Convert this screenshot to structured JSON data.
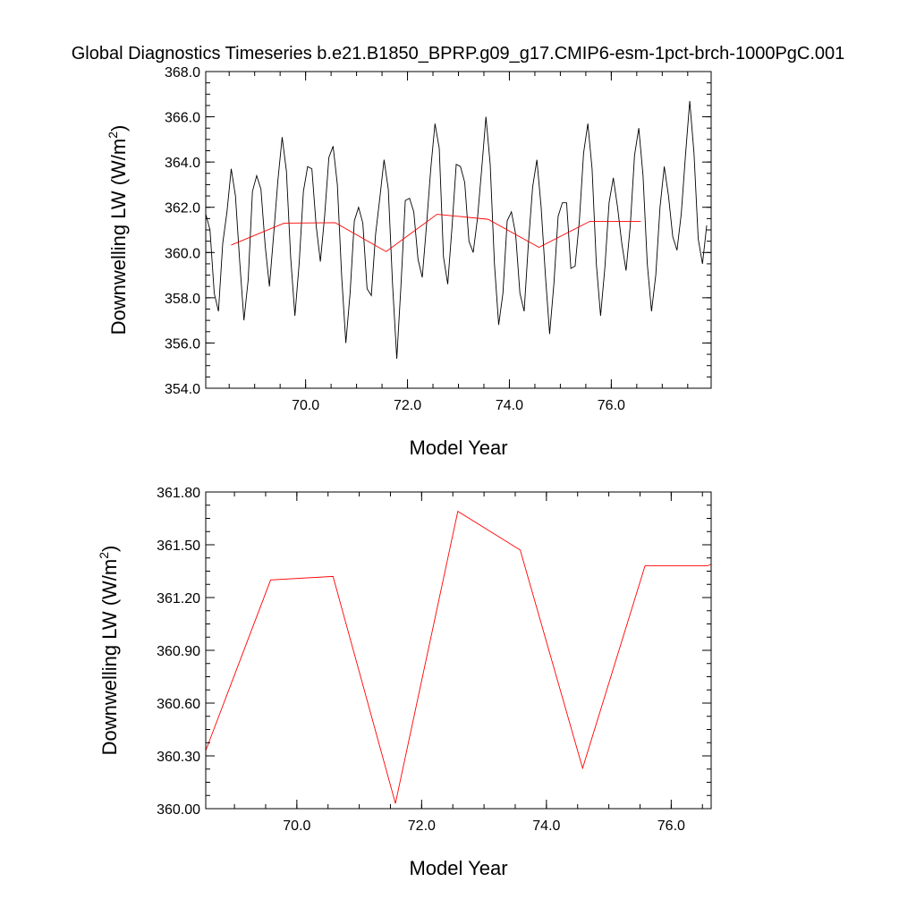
{
  "chart_data": [
    {
      "type": "line",
      "title": "Global Diagnostics Timeseries b.e21.B1850_BPRP.g09_g17.CMIP6-esm-1pct-brch-1000PgC.001",
      "xlabel": "Model Year",
      "ylabel_main": "Downwelling LW (W/m",
      "ylabel_sup": "2",
      "ylabel_tail": ")",
      "xlim": [
        68.04,
        77.96
      ],
      "ylim": [
        354.0,
        368.0
      ],
      "xticks": [
        "70.0",
        "72.0",
        "74.0",
        "76.0"
      ],
      "xtick_values": [
        70.0,
        72.0,
        74.0,
        76.0
      ],
      "yticks": [
        "354.0",
        "356.0",
        "358.0",
        "360.0",
        "362.0",
        "364.0",
        "366.0",
        "368.0"
      ],
      "ytick_values": [
        354.0,
        356.0,
        358.0,
        360.0,
        362.0,
        364.0,
        366.0,
        368.0
      ],
      "series": [
        {
          "color": "#000000",
          "x_start": 68.04,
          "x_step": 0.08333,
          "values": [
            361.7,
            361.0,
            358.2,
            357.4,
            360.4,
            361.8,
            363.7,
            362.5,
            359.6,
            357.0,
            358.8,
            362.7,
            363.4,
            362.8,
            360.3,
            358.5,
            360.8,
            363.2,
            365.1,
            363.6,
            359.8,
            357.2,
            359.5,
            362.7,
            363.8,
            363.7,
            361.2,
            359.6,
            361.6,
            364.2,
            364.7,
            363.0,
            359.0,
            356.0,
            358.2,
            361.4,
            362.0,
            361.3,
            358.4,
            358.1,
            360.8,
            362.4,
            364.1,
            362.8,
            358.6,
            355.3,
            358.6,
            362.3,
            362.4,
            361.8,
            359.7,
            358.9,
            361.2,
            363.7,
            365.7,
            364.6,
            359.8,
            358.6,
            361.1,
            363.9,
            363.8,
            363.1,
            360.5,
            360.0,
            361.5,
            363.7,
            366.0,
            363.9,
            359.5,
            356.8,
            358.2,
            361.4,
            361.8,
            360.8,
            358.2,
            357.4,
            360.4,
            362.9,
            364.1,
            362.0,
            359.0,
            356.4,
            358.6,
            361.6,
            362.2,
            362.2,
            359.3,
            359.4,
            361.4,
            364.4,
            365.7,
            363.7,
            359.5,
            357.2,
            359.3,
            362.2,
            363.3,
            362.0,
            360.4,
            359.2,
            361.2,
            364.3,
            365.5,
            363.4,
            359.5,
            357.4,
            359.0,
            362.0,
            363.8,
            362.5,
            360.7,
            360.1,
            361.7,
            364.3,
            366.7,
            364.4,
            360.6,
            359.5,
            361.2
          ]
        },
        {
          "color": "#ff0000",
          "x": [
            68.54,
            69.58,
            70.58,
            71.58,
            72.58,
            73.58,
            74.58,
            75.58,
            76.58
          ],
          "values": [
            360.33,
            361.3,
            361.32,
            360.04,
            361.69,
            361.47,
            360.23,
            361.38,
            361.38
          ]
        }
      ]
    },
    {
      "type": "line",
      "xlabel": "Model Year",
      "ylabel_main": "Downwelling LW (W/m",
      "ylabel_sup": "2",
      "ylabel_tail": ")",
      "xlim": [
        68.54,
        76.64
      ],
      "ylim": [
        360.0,
        361.8
      ],
      "xticks": [
        "70.0",
        "72.0",
        "74.0",
        "76.0"
      ],
      "xtick_values": [
        70.0,
        72.0,
        74.0,
        76.0
      ],
      "yticks": [
        "360.00",
        "360.30",
        "360.60",
        "360.90",
        "361.20",
        "361.50",
        "361.80"
      ],
      "ytick_values": [
        360.0,
        360.3,
        360.6,
        360.9,
        361.2,
        361.5,
        361.8
      ],
      "series": [
        {
          "color": "#ff0000",
          "x": [
            68.54,
            69.58,
            70.58,
            71.58,
            72.58,
            73.58,
            74.58,
            75.58,
            76.58,
            76.64
          ],
          "values": [
            360.33,
            361.3,
            361.32,
            360.03,
            361.69,
            361.47,
            360.23,
            361.38,
            361.38,
            361.39
          ]
        }
      ]
    }
  ]
}
